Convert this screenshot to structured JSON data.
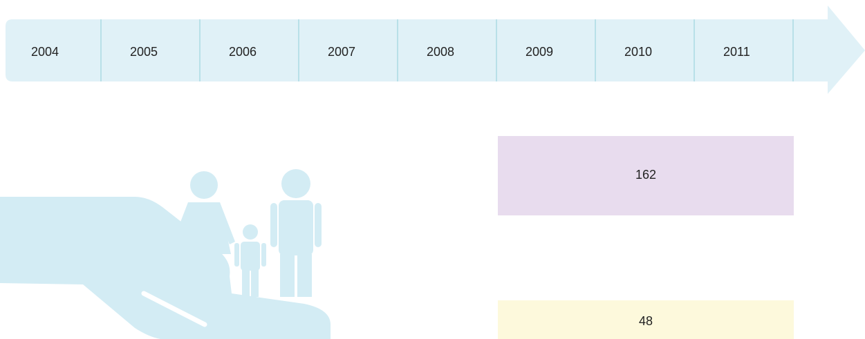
{
  "timeline": {
    "years": [
      "2004",
      "2005",
      "2006",
      "2007",
      "2008",
      "2009",
      "2010",
      "2011"
    ]
  },
  "boxes": [
    {
      "value": 162
    },
    {
      "value": 48
    }
  ]
}
